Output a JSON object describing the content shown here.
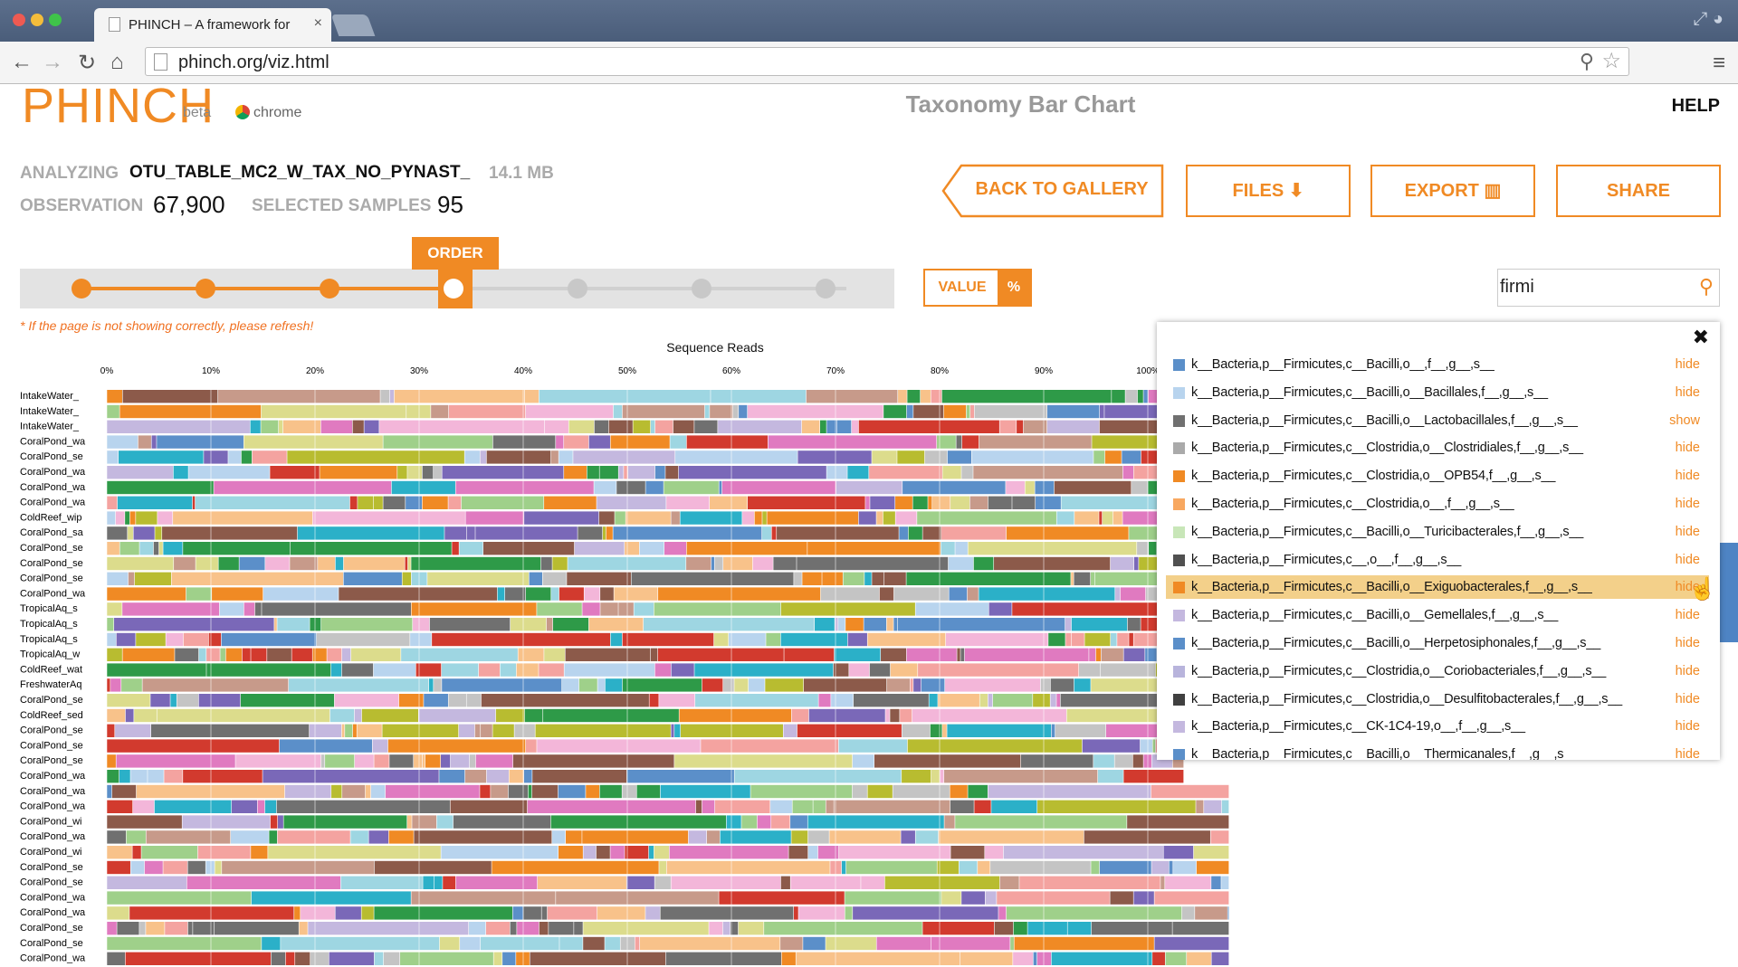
{
  "browser": {
    "tab_title": "PHINCH – A framework for",
    "tab_close": "×",
    "url": "phinch.org/viz.html"
  },
  "app": {
    "logo_text": "PHINCH",
    "beta_label": "beta",
    "chrome_label": "chrome",
    "page_title": "Taxonomy Bar Chart",
    "help_label": "HELP",
    "accent_color": "#f08a24"
  },
  "meta": {
    "analyzing_label": "ANALYZING",
    "file_name": "OTU_TABLE_MC2_W_TAX_NO_PYNAST_",
    "file_size": "14.1 MB",
    "observation_label": "OBSERVATION",
    "observation_value": "67,900",
    "selected_samples_label": "SELECTED SAMPLES",
    "selected_samples_value": "95"
  },
  "buttons": {
    "back": "BACK TO GALLERY",
    "files": "FILES",
    "export": "EXPORT",
    "share": "SHARE"
  },
  "slider": {
    "flag_label": "ORDER",
    "stop_count": 7,
    "active_stop": 4
  },
  "toggle": {
    "value_label": "VALUE",
    "percent_label": "%"
  },
  "refresh_note": "* If the page is not showing correctly, please refresh!",
  "search": {
    "value": "firmi"
  },
  "chart_data": {
    "type": "bar",
    "orientation": "horizontal-stacked",
    "title": "Sequence Reads",
    "x_ticks": [
      "0%",
      "10%",
      "20%",
      "30%",
      "40%",
      "50%",
      "60%",
      "70%",
      "80%",
      "90%",
      "100%"
    ],
    "xlim": [
      0,
      100
    ],
    "categories": [
      "IntakeWater_",
      "IntakeWater_",
      "IntakeWater_",
      "CoralPond_wa",
      "CoralPond_se",
      "CoralPond_wa",
      "CoralPond_wa",
      "CoralPond_wa",
      "ColdReef_wip",
      "CoralPond_sa",
      "CoralPond_se",
      "CoralPond_se",
      "CoralPond_se",
      "CoralPond_wa",
      "TropicalAq_s",
      "TropicalAq_s",
      "TropicalAq_s",
      "TropicalAq_w",
      "ColdReef_wat",
      "FreshwaterAq",
      "CoralPond_se",
      "ColdReef_sed",
      "CoralPond_se",
      "CoralPond_se",
      "CoralPond_se",
      "CoralPond_wa",
      "CoralPond_wa",
      "CoralPond_wa",
      "CoralPond_wi",
      "CoralPond_wa",
      "CoralPond_wi",
      "CoralPond_se",
      "CoralPond_se",
      "CoralPond_wa",
      "CoralPond_wa",
      "CoralPond_se",
      "CoralPond_se",
      "CoralPond_wa"
    ],
    "palette": [
      "#5b8fc9",
      "#b8d4ee",
      "#f08a24",
      "#f8c28a",
      "#2e9a48",
      "#9fd08a",
      "#d23a2e",
      "#f4a3a0",
      "#7a68b8",
      "#c4b8df",
      "#8c5a4a",
      "#c79a8a",
      "#e07ac0",
      "#f3b6d9",
      "#707070",
      "#c4c4c4",
      "#b8bc30",
      "#dcdc8c",
      "#2bb0c8",
      "#9ed6e2"
    ]
  },
  "dropdown": {
    "close_icon": "close-icon",
    "items": [
      {
        "name": "k__Bacteria,p__Firmicutes,c__Bacilli,o__,f__,g__,s__",
        "action": "hide",
        "color": "#5b8fc9"
      },
      {
        "name": "k__Bacteria,p__Firmicutes,c__Bacilli,o__Bacillales,f__,g__,s__",
        "action": "hide",
        "color": "#b8d4ee"
      },
      {
        "name": "k__Bacteria,p__Firmicutes,c__Bacilli,o__Lactobacillales,f__,g__,s__",
        "action": "show",
        "color": "#707070"
      },
      {
        "name": "k__Bacteria,p__Firmicutes,c__Clostridia,o__Clostridiales,f__,g__,s__",
        "action": "hide",
        "color": "#aaaaaa"
      },
      {
        "name": "k__Bacteria,p__Firmicutes,c__Clostridia,o__OPB54,f__,g__,s__",
        "action": "hide",
        "color": "#f08a24"
      },
      {
        "name": "k__Bacteria,p__Firmicutes,c__Clostridia,o__,f__,g__,s__",
        "action": "hide",
        "color": "#f8a860"
      },
      {
        "name": "k__Bacteria,p__Firmicutes,c__Bacilli,o__Turicibacterales,f__,g__,s__",
        "action": "hide",
        "color": "#c8e6b8"
      },
      {
        "name": "k__Bacteria,p__Firmicutes,c__,o__,f__,g__,s__",
        "action": "hide",
        "color": "#505050"
      },
      {
        "name": "k__Bacteria,p__Firmicutes,c__Bacilli,o__Exiguobacterales,f__,g__,s__",
        "action": "hide",
        "color": "#f08a24",
        "highlighted": true
      },
      {
        "name": "k__Bacteria,p__Firmicutes,c__Bacilli,o__Gemellales,f__,g__,s__",
        "action": "hide",
        "color": "#c4b8df"
      },
      {
        "name": "k__Bacteria,p__Firmicutes,c__Bacilli,o__Herpetosiphonales,f__,g__,s__",
        "action": "hide",
        "color": "#5b8fc9"
      },
      {
        "name": "k__Bacteria,p__Firmicutes,c__Clostridia,o__Coriobacteriales,f__,g__,s__",
        "action": "hide",
        "color": "#b8b4dc"
      },
      {
        "name": "k__Bacteria,p__Firmicutes,c__Clostridia,o__Desulfitobacterales,f__,g__,s__",
        "action": "hide",
        "color": "#404040"
      },
      {
        "name": "k__Bacteria,p__Firmicutes,c__CK-1C4-19,o__,f__,g__,s__",
        "action": "hide",
        "color": "#c4b8df"
      },
      {
        "name": "k__Bacteria,p__Firmicutes,c__Bacilli,o__Thermicanales,f__,g__,s__",
        "action": "hide",
        "color": "#5b8fc9"
      }
    ]
  }
}
